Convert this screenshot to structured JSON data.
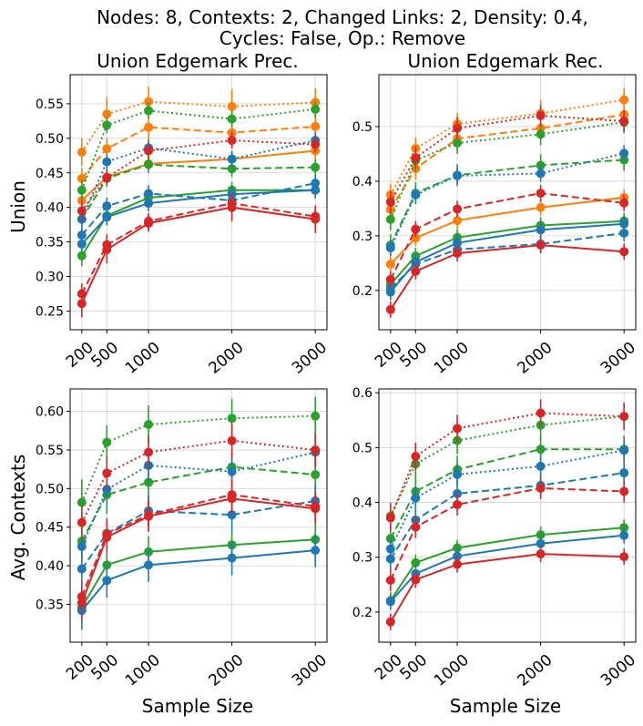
{
  "suptitle": [
    "Nodes: 8, Contexts: 2, Changed Links: 2, Density: 0.4,",
    "Cycles: False, Op.: Remove"
  ],
  "colors": {
    "blue": "#1f77b4",
    "orange": "#ff7f0e",
    "green": "#2ca02c",
    "red": "#d62728",
    "grid": "#d3d3d3"
  },
  "chart_data": [
    {
      "type": "line",
      "title": "Union Edgemark Prec.",
      "ylabel": "Union",
      "xlabel": "",
      "x": [
        200,
        500,
        1000,
        2000,
        3000
      ],
      "xlim": [
        60,
        3140
      ],
      "ylim": [
        0.223,
        0.592
      ],
      "yticks": [
        0.25,
        0.3,
        0.35,
        0.4,
        0.45,
        0.5,
        0.55
      ],
      "grid": true,
      "series": [
        {
          "color": "orange",
          "style": "solid",
          "values": [
            0.41,
            0.444,
            0.463,
            0.47,
            0.482
          ],
          "err": [
            0.012,
            0.012,
            0.012,
            0.012,
            0.012
          ]
        },
        {
          "color": "orange",
          "style": "dashed",
          "values": [
            0.442,
            0.485,
            0.516,
            0.508,
            0.517
          ],
          "err": [
            0.015,
            0.015,
            0.02,
            0.015,
            0.015
          ]
        },
        {
          "color": "orange",
          "style": "dotted",
          "values": [
            0.48,
            0.535,
            0.553,
            0.546,
            0.552
          ],
          "err": [
            0.02,
            0.025,
            0.022,
            0.025,
            0.02
          ]
        },
        {
          "color": "green",
          "style": "solid",
          "values": [
            0.33,
            0.388,
            0.414,
            0.425,
            0.425
          ],
          "err": [
            0.015,
            0.012,
            0.012,
            0.012,
            0.012
          ]
        },
        {
          "color": "green",
          "style": "dashed",
          "values": [
            0.383,
            0.442,
            0.462,
            0.456,
            0.458
          ],
          "err": [
            0.015,
            0.012,
            0.012,
            0.012,
            0.012
          ]
        },
        {
          "color": "green",
          "style": "dotted",
          "values": [
            0.425,
            0.519,
            0.54,
            0.528,
            0.542
          ],
          "err": [
            0.015,
            0.012,
            0.012,
            0.012,
            0.012
          ]
        },
        {
          "color": "blue",
          "style": "solid",
          "values": [
            0.347,
            0.386,
            0.406,
            0.419,
            0.425
          ],
          "err": [
            0.012,
            0.012,
            0.012,
            0.012,
            0.012
          ]
        },
        {
          "color": "blue",
          "style": "dashed",
          "values": [
            0.36,
            0.402,
            0.42,
            0.41,
            0.435
          ],
          "err": [
            0.012,
            0.012,
            0.012,
            0.012,
            0.012
          ]
        },
        {
          "color": "blue",
          "style": "dotted",
          "values": [
            0.383,
            0.466,
            0.486,
            0.47,
            0.497
          ],
          "err": [
            0.012,
            0.012,
            0.012,
            0.012,
            0.012
          ]
        },
        {
          "color": "red",
          "style": "solid",
          "values": [
            0.261,
            0.339,
            0.377,
            0.4,
            0.383
          ],
          "err": [
            0.02,
            0.02,
            0.012,
            0.02,
            0.02
          ]
        },
        {
          "color": "red",
          "style": "dashed",
          "values": [
            0.275,
            0.346,
            0.38,
            0.406,
            0.387
          ],
          "err": [
            0.015,
            0.015,
            0.012,
            0.015,
            0.012
          ]
        },
        {
          "color": "red",
          "style": "dotted",
          "values": [
            0.395,
            0.443,
            0.482,
            0.497,
            0.491
          ],
          "err": [
            0.015,
            0.012,
            0.012,
            0.012,
            0.012
          ]
        }
      ]
    },
    {
      "type": "line",
      "title": "Union Edgemark Rec.",
      "ylabel": "",
      "xlabel": "",
      "x": [
        200,
        500,
        1000,
        2000,
        3000
      ],
      "xlim": [
        60,
        3140
      ],
      "ylim": [
        0.128,
        0.595
      ],
      "yticks": [
        0.2,
        0.3,
        0.4,
        0.5
      ],
      "grid": true,
      "series": [
        {
          "color": "orange",
          "style": "solid",
          "values": [
            0.248,
            0.296,
            0.328,
            0.352,
            0.37
          ],
          "err": [
            0.015,
            0.015,
            0.015,
            0.015,
            0.015
          ]
        },
        {
          "color": "orange",
          "style": "dashed",
          "values": [
            0.348,
            0.423,
            0.478,
            0.497,
            0.522
          ],
          "err": [
            0.02,
            0.02,
            0.02,
            0.02,
            0.02
          ]
        },
        {
          "color": "orange",
          "style": "dotted",
          "values": [
            0.375,
            0.46,
            0.505,
            0.524,
            0.549
          ],
          "err": [
            0.02,
            0.02,
            0.02,
            0.025,
            0.022
          ]
        },
        {
          "color": "green",
          "style": "solid",
          "values": [
            0.211,
            0.263,
            0.297,
            0.319,
            0.327
          ],
          "err": [
            0.015,
            0.015,
            0.015,
            0.015,
            0.015
          ]
        },
        {
          "color": "green",
          "style": "dashed",
          "values": [
            0.283,
            0.378,
            0.411,
            0.429,
            0.439
          ],
          "err": [
            0.02,
            0.02,
            0.02,
            0.02,
            0.02
          ]
        },
        {
          "color": "green",
          "style": "dotted",
          "values": [
            0.33,
            0.438,
            0.47,
            0.486,
            0.508
          ],
          "err": [
            0.02,
            0.02,
            0.02,
            0.02,
            0.02
          ]
        },
        {
          "color": "blue",
          "style": "solid",
          "values": [
            0.197,
            0.252,
            0.287,
            0.311,
            0.322
          ],
          "err": [
            0.015,
            0.015,
            0.015,
            0.015,
            0.015
          ]
        },
        {
          "color": "blue",
          "style": "dashed",
          "values": [
            0.204,
            0.248,
            0.275,
            0.285,
            0.305
          ],
          "err": [
            0.015,
            0.015,
            0.015,
            0.015,
            0.015
          ]
        },
        {
          "color": "blue",
          "style": "dotted",
          "values": [
            0.278,
            0.375,
            0.41,
            0.414,
            0.451
          ],
          "err": [
            0.015,
            0.015,
            0.015,
            0.015,
            0.015
          ]
        },
        {
          "color": "red",
          "style": "solid",
          "values": [
            0.165,
            0.235,
            0.268,
            0.283,
            0.271
          ],
          "err": [
            0.015,
            0.015,
            0.015,
            0.015,
            0.015
          ]
        },
        {
          "color": "red",
          "style": "dashed",
          "values": [
            0.22,
            0.312,
            0.349,
            0.378,
            0.36
          ],
          "err": [
            0.015,
            0.015,
            0.015,
            0.015,
            0.015
          ]
        },
        {
          "color": "red",
          "style": "dotted",
          "values": [
            0.362,
            0.443,
            0.497,
            0.52,
            0.51
          ],
          "err": [
            0.02,
            0.02,
            0.02,
            0.02,
            0.02
          ]
        }
      ]
    },
    {
      "type": "line",
      "title": "",
      "ylabel": "Avg. Contexts",
      "xlabel": "Sample Size",
      "x": [
        200,
        500,
        1000,
        2000,
        3000
      ],
      "xlim": [
        60,
        3140
      ],
      "ylim": [
        0.301,
        0.629
      ],
      "yticks": [
        0.35,
        0.4,
        0.45,
        0.5,
        0.55,
        0.6
      ],
      "grid": true,
      "series": [
        {
          "color": "green",
          "style": "solid",
          "values": [
            0.346,
            0.401,
            0.418,
            0.427,
            0.434
          ],
          "err": [
            0.02,
            0.02,
            0.02,
            0.02,
            0.02
          ]
        },
        {
          "color": "green",
          "style": "dashed",
          "values": [
            0.432,
            0.492,
            0.508,
            0.528,
            0.518
          ],
          "err": [
            0.025,
            0.025,
            0.025,
            0.025,
            0.025
          ]
        },
        {
          "color": "green",
          "style": "dotted",
          "values": [
            0.482,
            0.56,
            0.583,
            0.591,
            0.594
          ],
          "err": [
            0.03,
            0.022,
            0.025,
            0.025,
            0.025
          ]
        },
        {
          "color": "blue",
          "style": "solid",
          "values": [
            0.342,
            0.381,
            0.401,
            0.41,
            0.42
          ],
          "err": [
            0.025,
            0.022,
            0.022,
            0.022,
            0.022
          ]
        },
        {
          "color": "blue",
          "style": "dashed",
          "values": [
            0.396,
            0.442,
            0.471,
            0.466,
            0.484
          ],
          "err": [
            0.02,
            0.02,
            0.02,
            0.02,
            0.02
          ]
        },
        {
          "color": "blue",
          "style": "dotted",
          "values": [
            0.425,
            0.499,
            0.53,
            0.522,
            0.547
          ],
          "err": [
            0.02,
            0.02,
            0.02,
            0.02,
            0.02
          ]
        },
        {
          "color": "red",
          "style": "solid",
          "values": [
            0.352,
            0.437,
            0.464,
            0.487,
            0.474
          ],
          "err": [
            0.02,
            0.02,
            0.02,
            0.02,
            0.02
          ]
        },
        {
          "color": "red",
          "style": "dashed",
          "values": [
            0.36,
            0.441,
            0.466,
            0.492,
            0.477
          ],
          "err": [
            0.02,
            0.02,
            0.02,
            0.02,
            0.02
          ]
        },
        {
          "color": "red",
          "style": "dotted",
          "values": [
            0.456,
            0.52,
            0.547,
            0.562,
            0.55
          ],
          "err": [
            0.022,
            0.022,
            0.022,
            0.022,
            0.022
          ]
        }
      ]
    },
    {
      "type": "line",
      "title": "",
      "ylabel": "",
      "xlabel": "Sample Size",
      "x": [
        200,
        500,
        1000,
        2000,
        3000
      ],
      "xlim": [
        60,
        3140
      ],
      "ylim": [
        0.145,
        0.607
      ],
      "yticks": [
        0.2,
        0.3,
        0.4,
        0.5,
        0.6
      ],
      "grid": true,
      "series": [
        {
          "color": "green",
          "style": "solid",
          "values": [
            0.221,
            0.29,
            0.317,
            0.341,
            0.354
          ],
          "err": [
            0.015,
            0.015,
            0.015,
            0.015,
            0.015
          ]
        },
        {
          "color": "green",
          "style": "dashed",
          "values": [
            0.334,
            0.42,
            0.46,
            0.497,
            0.497
          ],
          "err": [
            0.025,
            0.025,
            0.025,
            0.025,
            0.025
          ]
        },
        {
          "color": "green",
          "style": "dotted",
          "values": [
            0.375,
            0.47,
            0.513,
            0.541,
            0.557
          ],
          "err": [
            0.025,
            0.025,
            0.025,
            0.025,
            0.025
          ]
        },
        {
          "color": "blue",
          "style": "solid",
          "values": [
            0.219,
            0.27,
            0.302,
            0.325,
            0.34
          ],
          "err": [
            0.015,
            0.015,
            0.015,
            0.015,
            0.015
          ]
        },
        {
          "color": "blue",
          "style": "dashed",
          "values": [
            0.297,
            0.368,
            0.416,
            0.431,
            0.454
          ],
          "err": [
            0.02,
            0.02,
            0.02,
            0.02,
            0.02
          ]
        },
        {
          "color": "blue",
          "style": "dotted",
          "values": [
            0.315,
            0.408,
            0.451,
            0.466,
            0.495
          ],
          "err": [
            0.02,
            0.02,
            0.02,
            0.02,
            0.02
          ]
        },
        {
          "color": "red",
          "style": "solid",
          "values": [
            0.182,
            0.259,
            0.287,
            0.306,
            0.301
          ],
          "err": [
            0.015,
            0.015,
            0.015,
            0.015,
            0.015
          ]
        },
        {
          "color": "red",
          "style": "dashed",
          "values": [
            0.258,
            0.355,
            0.396,
            0.426,
            0.42
          ],
          "err": [
            0.02,
            0.02,
            0.02,
            0.02,
            0.02
          ]
        },
        {
          "color": "red",
          "style": "dotted",
          "values": [
            0.372,
            0.484,
            0.535,
            0.563,
            0.557
          ],
          "err": [
            0.025,
            0.025,
            0.025,
            0.025,
            0.025
          ]
        }
      ]
    }
  ]
}
